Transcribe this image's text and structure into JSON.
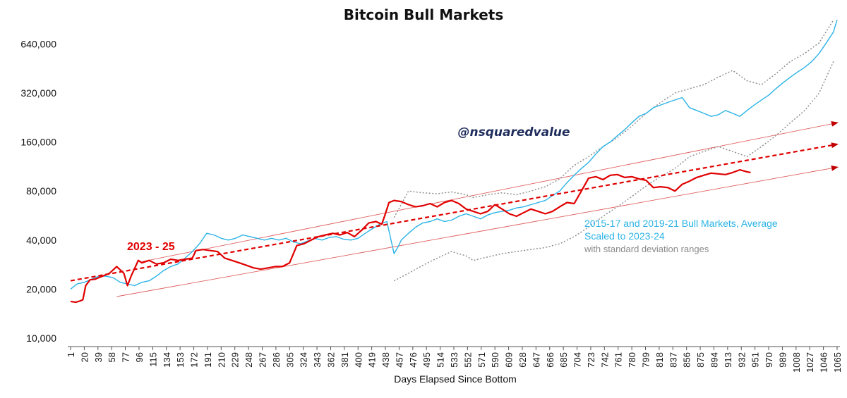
{
  "chart_data": {
    "type": "line",
    "title": "Bitcoin Bull Markets",
    "xlabel": "Days Elapsed Since Bottom",
    "ylabel": "",
    "y_scale": "log2",
    "ylim": [
      10000,
      900000
    ],
    "xlim": [
      1,
      1065
    ],
    "y_ticks": [
      10000,
      20000,
      40000,
      80000,
      160000,
      320000,
      640000
    ],
    "y_tick_labels": [
      "10,000",
      "20,000",
      "40,000",
      "80,000",
      "160,000",
      "320,000",
      "640,000"
    ],
    "x_ticks": [
      1,
      20,
      39,
      58,
      77,
      96,
      115,
      134,
      153,
      172,
      191,
      210,
      229,
      248,
      267,
      286,
      305,
      324,
      343,
      362,
      381,
      400,
      419,
      438,
      457,
      476,
      495,
      514,
      533,
      552,
      571,
      590,
      609,
      628,
      647,
      666,
      685,
      704,
      723,
      742,
      761,
      780,
      799,
      818,
      837,
      856,
      875,
      894,
      913,
      932,
      951,
      970,
      989,
      1008,
      1027,
      1046,
      1065
    ],
    "watermark": "@nsquaredvalue",
    "annotations": {
      "red_label": "2023 - 25",
      "blue_label_line1": "2015-17 and 2019-21 Bull Markets, Average",
      "blue_label_line2": "Scaled to 2023-24",
      "grey_label": "with standard deviation ranges"
    },
    "series": [
      {
        "role": "2023-25",
        "color": "#e00000",
        "style": "solid",
        "x": [
          1,
          8,
          14,
          18,
          22,
          28,
          35,
          45,
          55,
          65,
          75,
          80,
          85,
          95,
          100,
          110,
          120,
          130,
          140,
          150,
          160,
          170,
          175,
          185,
          195,
          205,
          215,
          225,
          235,
          245,
          255,
          265,
          275,
          285,
          295,
          305,
          315,
          325,
          335,
          345,
          355,
          365,
          375,
          385,
          395,
          405,
          415,
          425,
          433,
          438,
          443,
          450,
          460,
          470,
          480,
          490,
          500,
          510,
          520,
          530,
          540,
          550,
          560,
          570,
          580,
          590,
          600,
          610,
          620,
          630,
          640,
          650,
          660,
          670,
          680,
          690,
          700,
          710,
          720,
          730,
          740,
          750,
          760,
          770,
          780,
          790,
          800,
          810,
          820,
          830,
          840,
          850,
          860,
          870,
          880,
          890,
          900,
          910,
          920,
          930,
          940,
          945
        ],
        "y": [
          16800,
          16600,
          16900,
          17200,
          21000,
          22800,
          23000,
          24000,
          25000,
          27500,
          25000,
          21000,
          24000,
          30000,
          29000,
          30000,
          28500,
          29000,
          30500,
          30000,
          30500,
          31000,
          34500,
          35000,
          34500,
          34000,
          31000,
          30000,
          29000,
          28000,
          27000,
          26500,
          27000,
          27500,
          27500,
          29000,
          37000,
          38000,
          40000,
          42000,
          43000,
          44000,
          43000,
          44500,
          42000,
          46000,
          51000,
          52000,
          50000,
          58000,
          68000,
          70000,
          69000,
          66000,
          64000,
          65000,
          67000,
          64000,
          68000,
          70000,
          67000,
          62000,
          60000,
          58000,
          60000,
          66000,
          62000,
          58000,
          56000,
          59000,
          62000,
          60000,
          58000,
          60000,
          64000,
          68000,
          67000,
          80000,
          96000,
          98000,
          94000,
          100000,
          101000,
          97000,
          98000,
          95000,
          93000,
          84000,
          85000,
          84000,
          80000,
          88000,
          92000,
          97000,
          100000,
          103000,
          102000,
          101000,
          104000,
          108000,
          105000,
          104000
        ]
      },
      {
        "role": "average",
        "color": "#2bb3e6",
        "style": "solid",
        "x": [
          1,
          10,
          20,
          30,
          40,
          50,
          60,
          70,
          80,
          90,
          100,
          110,
          120,
          130,
          140,
          150,
          160,
          170,
          180,
          190,
          200,
          210,
          220,
          230,
          240,
          250,
          260,
          270,
          280,
          290,
          300,
          310,
          320,
          330,
          340,
          350,
          360,
          370,
          380,
          390,
          400,
          410,
          420,
          430,
          440,
          450,
          455,
          460,
          470,
          480,
          490,
          500,
          510,
          520,
          530,
          540,
          550,
          560,
          570,
          580,
          590,
          600,
          610,
          620,
          630,
          640,
          650,
          660,
          670,
          680,
          690,
          700,
          710,
          720,
          730,
          740,
          750,
          760,
          770,
          780,
          790,
          800,
          810,
          820,
          830,
          840,
          850,
          860,
          870,
          880,
          890,
          900,
          910,
          920,
          930,
          940,
          950,
          960,
          970,
          980,
          990,
          1000,
          1010,
          1020,
          1030,
          1040,
          1050,
          1060,
          1065
        ],
        "y": [
          20000,
          21500,
          22000,
          23000,
          24000,
          24000,
          23500,
          22000,
          21500,
          21000,
          22000,
          22500,
          24000,
          26000,
          27500,
          28500,
          31000,
          34000,
          38000,
          44000,
          43000,
          41000,
          40000,
          41000,
          43000,
          42000,
          41000,
          40000,
          41000,
          40000,
          41000,
          39000,
          38000,
          39500,
          41000,
          40000,
          41500,
          42000,
          40500,
          40000,
          41000,
          44000,
          47000,
          50000,
          52000,
          33000,
          36000,
          40000,
          44000,
          48000,
          51000,
          52000,
          54000,
          52000,
          53000,
          56000,
          58000,
          56000,
          54000,
          57000,
          59000,
          60000,
          61000,
          63000,
          64000,
          66000,
          68000,
          70000,
          75000,
          80000,
          90000,
          100000,
          110000,
          120000,
          135000,
          150000,
          160000,
          175000,
          190000,
          210000,
          230000,
          240000,
          260000,
          270000,
          280000,
          290000,
          300000,
          260000,
          250000,
          240000,
          230000,
          235000,
          250000,
          240000,
          230000,
          250000,
          270000,
          290000,
          310000,
          340000,
          370000,
          400000,
          430000,
          460000,
          500000,
          560000,
          650000,
          760000,
          900000
        ]
      },
      {
        "role": "upper deviation",
        "color": "#8a8a8a",
        "style": "dotted",
        "x": [
          450,
          470,
          490,
          510,
          530,
          550,
          560,
          580,
          600,
          620,
          640,
          660,
          680,
          700,
          720,
          740,
          760,
          780,
          800,
          820,
          840,
          860,
          880,
          900,
          920,
          940,
          960,
          980,
          1000,
          1020,
          1040,
          1060
        ],
        "y": [
          55000,
          80000,
          78000,
          77000,
          79000,
          76000,
          73000,
          76000,
          78000,
          76000,
          80000,
          85000,
          95000,
          115000,
          130000,
          150000,
          170000,
          200000,
          240000,
          280000,
          320000,
          340000,
          360000,
          400000,
          440000,
          380000,
          360000,
          420000,
          500000,
          560000,
          650000,
          900000
        ]
      },
      {
        "role": "lower deviation",
        "color": "#8a8a8a",
        "style": "dotted",
        "x": [
          450,
          470,
          490,
          510,
          530,
          550,
          560,
          580,
          600,
          620,
          640,
          660,
          680,
          700,
          720,
          740,
          760,
          780,
          800,
          820,
          840,
          860,
          880,
          900,
          920,
          940,
          960,
          980,
          1000,
          1020,
          1040,
          1060
        ],
        "y": [
          22500,
          25000,
          28000,
          31000,
          34000,
          32000,
          30000,
          31500,
          33000,
          34000,
          35000,
          36000,
          38000,
          42000,
          48000,
          56000,
          64000,
          74000,
          86000,
          98000,
          110000,
          130000,
          140000,
          150000,
          140000,
          130000,
          150000,
          175000,
          210000,
          250000,
          320000,
          500000
        ]
      },
      {
        "role": "trend",
        "color": "#e00000",
        "style": "dashed",
        "x": [
          1,
          1065
        ],
        "y": [
          22500,
          155000
        ]
      },
      {
        "role": "upper channel",
        "color": "#e06060",
        "style": "thin",
        "x": [
          100,
          1065
        ],
        "y": [
          29500,
          210000
        ]
      },
      {
        "role": "lower channel",
        "color": "#e06060",
        "style": "thin",
        "x": [
          65,
          1065
        ],
        "y": [
          18000,
          112000
        ]
      }
    ]
  }
}
